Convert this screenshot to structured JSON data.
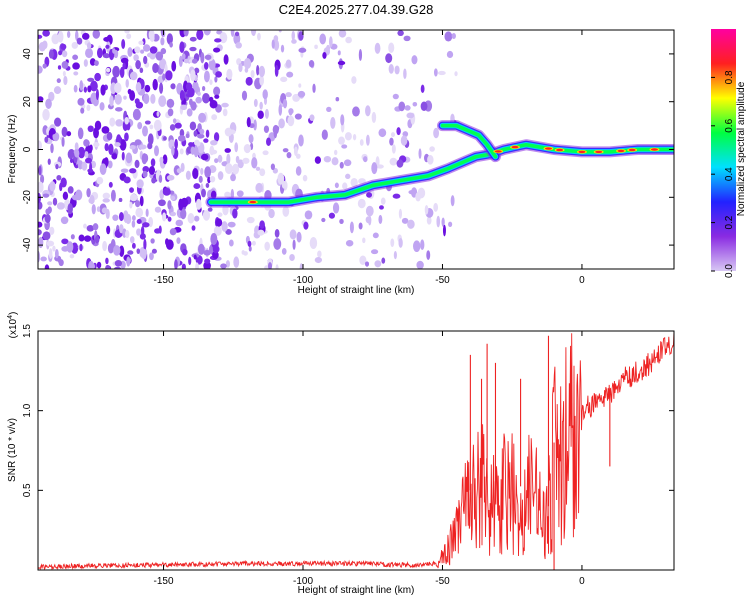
{
  "figure": {
    "title": "C2E4.2025.277.04.39.G28"
  },
  "chart_data": [
    {
      "type": "heatmap",
      "name": "spectrogram",
      "xlabel": "Height of straight line (km)",
      "ylabel": "Frequency (Hz)",
      "xlim": [
        -195,
        33
      ],
      "ylim": [
        -50,
        50
      ],
      "xticks": [
        -150,
        -100,
        -50,
        0
      ],
      "yticks": [
        -40,
        -20,
        0,
        20,
        40
      ],
      "ridge": {
        "x": [
          -133,
          -125,
          -115,
          -105,
          -95,
          -85,
          -75,
          -65,
          -55,
          -48,
          -42,
          -38,
          -33,
          -28,
          -20,
          -10,
          0,
          10,
          20,
          33
        ],
        "y": [
          -22,
          -22,
          -22,
          -22,
          -20,
          -19,
          -15,
          -13,
          -11,
          -8,
          -5,
          -3,
          -2,
          0,
          2,
          0,
          -1,
          -1,
          0,
          0
        ]
      },
      "branch": {
        "x": [
          -50,
          -45,
          -41,
          -37,
          -34,
          -31
        ],
        "y": [
          10,
          10,
          8,
          6,
          2,
          -3
        ]
      }
    },
    {
      "type": "line",
      "name": "snr",
      "xlabel": "Height of straight line (km)",
      "ylabel": "SNR (10 * v/v)",
      "exponent_label": "(x10",
      "exponent_sup": "4",
      "xlim": [
        -195,
        33
      ],
      "ylim": [
        0,
        1.5
      ],
      "xticks": [
        -150,
        -100,
        -50,
        0
      ],
      "yticks": [
        0.5,
        1.0,
        1.5
      ],
      "ytick_labels": [
        "0.5",
        "1.0",
        "1.5"
      ],
      "series_color": "#ee2222",
      "anchors": {
        "x": [
          -195,
          -160,
          -120,
          -80,
          -60,
          -52,
          -48,
          -45,
          -42,
          -40,
          -38,
          -35,
          -33,
          -30,
          -27,
          -24,
          -20,
          -15,
          -12,
          -10,
          -8,
          -5,
          -2,
          0,
          5,
          10,
          15,
          20,
          25,
          30,
          33
        ],
        "y": [
          0.02,
          0.03,
          0.04,
          0.04,
          0.03,
          0.04,
          0.15,
          0.25,
          0.4,
          0.5,
          0.6,
          0.65,
          0.5,
          0.4,
          0.6,
          0.5,
          0.55,
          0.45,
          0.4,
          0.8,
          0.85,
          0.9,
          0.95,
          1.0,
          1.05,
          1.1,
          1.2,
          1.25,
          1.3,
          1.4,
          1.45
        ]
      },
      "spikes": {
        "x": [
          -40,
          -36,
          -34,
          -31,
          -22,
          -12,
          -10,
          10
        ],
        "y": [
          1.35,
          1.2,
          1.42,
          1.3,
          1.2,
          1.47,
          0.0,
          0.65
        ]
      }
    }
  ],
  "colorbar": {
    "label": "Normalized spectral amplitude",
    "ticks": [
      0.0,
      0.2,
      0.4,
      0.6,
      0.8
    ],
    "tick_labels": [
      "0.0",
      "0.2",
      "0.4",
      "0.6",
      "0.8"
    ],
    "range": [
      0,
      1
    ],
    "colors": [
      "#d8c8f4",
      "#8a2be2",
      "#2222ff",
      "#00e0ff",
      "#00ff40",
      "#ffff00",
      "#ff2020",
      "#ff00a0"
    ]
  }
}
